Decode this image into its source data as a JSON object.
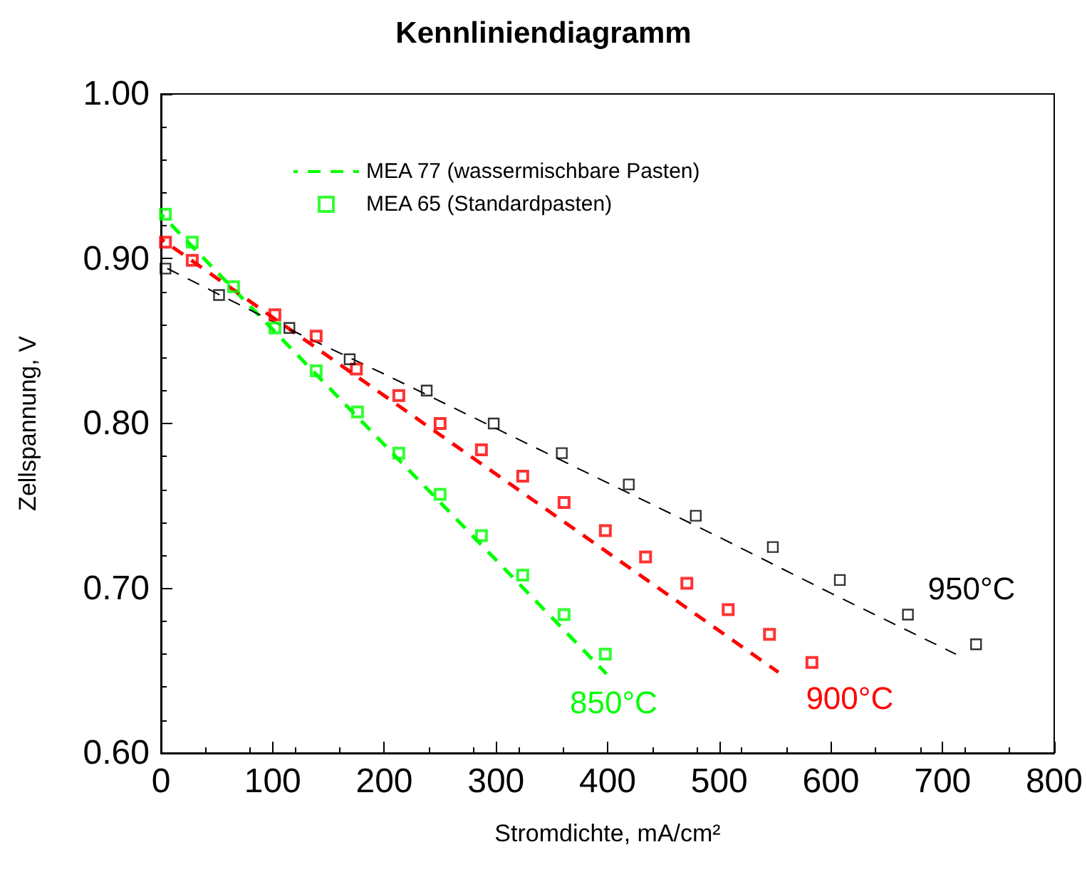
{
  "chart_data": {
    "type": "scatter",
    "title": "Kennliniendiagramm",
    "xlabel": "Stromdichte, mA/cm²",
    "ylabel": "Zellspannung, V",
    "xlim": [
      0,
      800
    ],
    "xticks": [
      0,
      100,
      200,
      300,
      400,
      500,
      600,
      700,
      800
    ],
    "ylim": [
      0.6,
      1.0
    ],
    "yticks": [
      {
        "value": 0.6,
        "label": "0.60"
      },
      {
        "value": 0.7,
        "label": "0.70"
      },
      {
        "value": 0.8,
        "label": "0.80"
      },
      {
        "value": 0.9,
        "label": "0.90"
      },
      {
        "value": 1.0,
        "label": "1.00"
      }
    ],
    "grid": false,
    "legend": "top left",
    "series": [
      {
        "name": "MEA 77 (wassermischbare Pasten)",
        "type": "line",
        "marker": "none",
        "line_style": "dashed",
        "color": "#00ff00",
        "x": [
          0,
          399
        ],
        "values": [
          0.927,
          0.648
        ]
      },
      {
        "name": "MEA 65 (Standardpasten)",
        "marker": "square",
        "color": "#00ff00",
        "x": [
          4,
          28,
          65,
          102,
          139,
          176,
          213,
          250,
          287,
          324,
          361,
          398
        ],
        "values": [
          0.927,
          0.91,
          0.883,
          0.858,
          0.832,
          0.807,
          0.782,
          0.757,
          0.732,
          0.708,
          0.684,
          0.66
        ]
      },
      {
        "type": "line",
        "marker": "none",
        "line_style": "dashed",
        "color": "#ff0000",
        "x": [
          0,
          553
        ],
        "values": [
          0.912,
          0.649
        ]
      },
      {
        "marker": "square",
        "color": "#ff0000",
        "x": [
          4,
          28,
          102,
          139,
          175,
          213,
          250,
          287,
          324,
          361,
          398,
          434,
          471,
          508,
          545,
          583
        ],
        "values": [
          0.91,
          0.899,
          0.866,
          0.853,
          0.833,
          0.817,
          0.8,
          0.784,
          0.768,
          0.752,
          0.735,
          0.719,
          0.703,
          0.687,
          0.672,
          0.655
        ]
      },
      {
        "type": "line",
        "marker": "none",
        "line_style": "dashed",
        "color": "#000000",
        "x": [
          0,
          100,
          200,
          300,
          400,
          500,
          600,
          712
        ],
        "values": [
          0.896,
          0.862,
          0.83,
          0.797,
          0.764,
          0.731,
          0.697,
          0.66
        ]
      },
      {
        "marker": "square",
        "color": "#000000",
        "x": [
          4,
          52,
          115,
          169,
          238,
          298,
          359,
          419,
          479,
          548,
          608,
          669,
          730
        ],
        "values": [
          0.894,
          0.878,
          0.858,
          0.839,
          0.82,
          0.8,
          0.782,
          0.763,
          0.744,
          0.725,
          0.705,
          0.684,
          0.666
        ]
      }
    ],
    "annotations": [
      "850°C",
      "900°C",
      "950°C"
    ]
  }
}
